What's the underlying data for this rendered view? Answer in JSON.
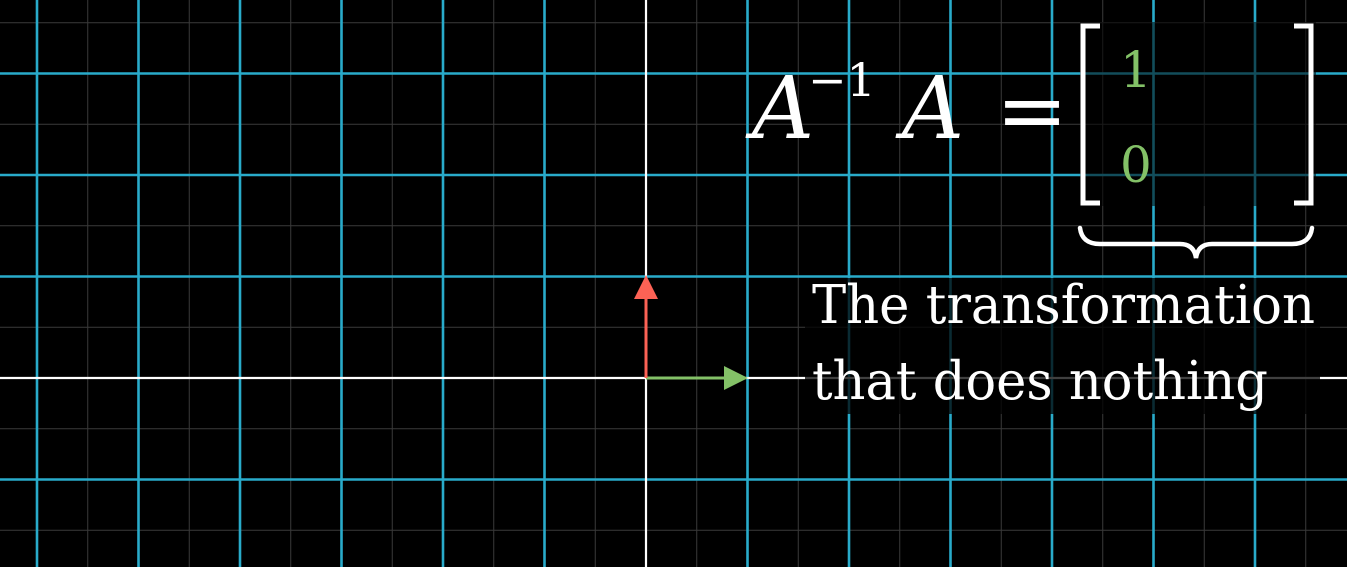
{
  "equation": {
    "base": "A",
    "exponent": "−1",
    "rhs_letter": "A",
    "equals": "=",
    "matrix_col1": [
      "1",
      "0"
    ],
    "matrix_entry_color": "#83C167"
  },
  "caption": {
    "line1": "The transformation",
    "line2": "that does nothing"
  },
  "colors": {
    "background": "#000000",
    "grid_major": "#29ABCA",
    "grid_minor": "#3a3a3a",
    "axis": "#FFFFFF",
    "vector_i": "#83C167",
    "vector_j": "#FC6255",
    "text": "#FFFFFF"
  },
  "vectors": [
    {
      "name": "i-hat",
      "x": 1,
      "y": 0
    },
    {
      "name": "j-hat",
      "x": 0,
      "y": 1
    }
  ]
}
